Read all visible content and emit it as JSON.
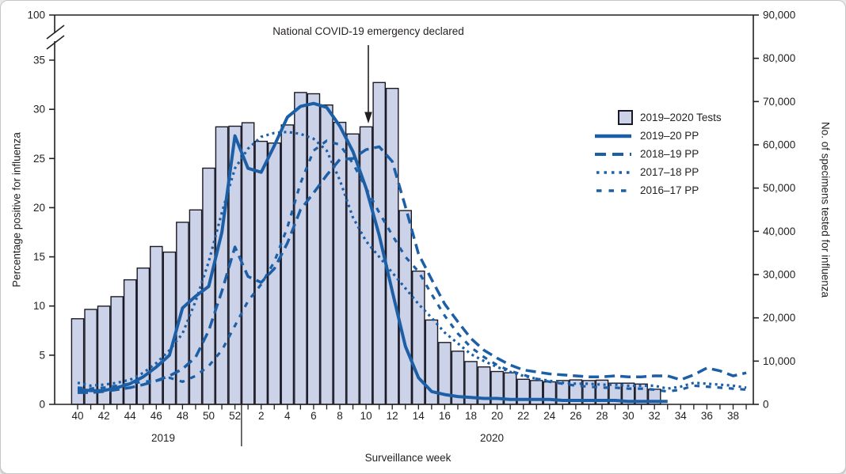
{
  "figure_title": "",
  "annotation": {
    "text": "National COVID-19 emergency declared"
  },
  "axes": {
    "x": {
      "label": "Surveillance week",
      "year_left": "2019",
      "year_right": "2020"
    },
    "y_left": {
      "label": "Percentage positive for influenza",
      "ticks": [
        0,
        5,
        10,
        15,
        20,
        25,
        30,
        35
      ],
      "break_top_tick": "100"
    },
    "y_right": {
      "label": "No. of specimens tested for influenza",
      "ticks": [
        0,
        10000,
        20000,
        30000,
        40000,
        50000,
        60000,
        70000,
        80000,
        90000
      ]
    }
  },
  "legend": {
    "items": [
      {
        "id": "tests",
        "label": "2019–2020 Tests",
        "type": "bar"
      },
      {
        "id": "pp-2019-20",
        "label": "2019–20 PP",
        "type": "line-solid"
      },
      {
        "id": "pp-2018-19",
        "label": "2018–19 PP",
        "type": "line-long-dash"
      },
      {
        "id": "pp-2017-18",
        "label": "2017–18 PP",
        "type": "line-dotted"
      },
      {
        "id": "pp-2016-17",
        "label": "2016–17 PP",
        "type": "line-short-dash"
      }
    ]
  },
  "colors": {
    "line_blue": "#1d5fa6",
    "bar_fill": "#ccd3e9",
    "bar_stroke": "#1a1a26",
    "axis": "#231f20",
    "text": "#231f20"
  },
  "chart_data": {
    "type": "bar",
    "subtype": "combo: bars of specimens tested (right axis) + 4 percent-positive lines (left axis)",
    "title": "",
    "xlabel": "Surveillance week",
    "ylabel_left": "Percentage positive for influenza",
    "ylabel_right": "No. of specimens tested for influenza",
    "ylim_left": [
      0,
      35
    ],
    "ylim_left_break_top": 100,
    "ylim_right": [
      0,
      90000
    ],
    "grid": false,
    "legend_position": "upper right inside plot",
    "x_weeks": [
      40,
      41,
      42,
      43,
      44,
      45,
      46,
      47,
      48,
      49,
      50,
      51,
      52,
      1,
      2,
      3,
      4,
      5,
      6,
      7,
      8,
      9,
      10,
      11,
      12,
      13,
      14,
      15,
      16,
      17,
      18,
      19,
      20,
      21,
      22,
      23,
      24,
      25,
      26,
      27,
      28,
      29,
      30,
      31,
      32,
      33,
      34,
      35,
      36,
      37,
      38,
      39
    ],
    "x_week_years": "weeks 40–52 are 2019; weeks 1–39 are 2020",
    "bars": {
      "name": "2019–2020 Tests",
      "axis": "right",
      "weeks_covered": "40 (2019) through 32 (2020)",
      "values": [
        19800,
        21950,
        22700,
        24900,
        28800,
        31500,
        36500,
        35200,
        42100,
        44950,
        54600,
        64150,
        64300,
        65100,
        60800,
        60400,
        64600,
        72100,
        71800,
        69200,
        65200,
        62500,
        64150,
        74400,
        73050,
        44800,
        30800,
        19500,
        14300,
        12300,
        9900,
        8650,
        7600,
        7300,
        5800,
        5500,
        5200,
        5500,
        5650,
        5500,
        5600,
        4900,
        4900,
        4700,
        3500
      ]
    },
    "series": [
      {
        "name": "2019–20 PP",
        "style": "solid",
        "axis": "left",
        "values": [
          1.5,
          1.4,
          1.4,
          1.7,
          2.1,
          2.8,
          3.8,
          5.0,
          9.8,
          11.0,
          12.0,
          17.5,
          27.3,
          24.0,
          23.6,
          26.3,
          29.2,
          30.3,
          30.6,
          30.2,
          28.3,
          25.7,
          22.0,
          17.2,
          11.5,
          5.9,
          2.7,
          1.3,
          1.0,
          0.8,
          0.7,
          0.6,
          0.6,
          0.5,
          0.5,
          0.5,
          0.5,
          0.4,
          0.4,
          0.4,
          0.4,
          0.4,
          0.3,
          0.3,
          0.3,
          0.3,
          null,
          null,
          null,
          null,
          null,
          null
        ]
      },
      {
        "name": "2018–19 PP",
        "style": "long-dash",
        "axis": "left",
        "values": [
          1.2,
          1.2,
          1.3,
          1.5,
          1.7,
          2.0,
          2.4,
          2.9,
          3.6,
          4.8,
          7.5,
          11.5,
          16.0,
          13.0,
          12.4,
          13.8,
          16.4,
          19.8,
          21.5,
          23.3,
          24.9,
          25.0,
          25.9,
          26.2,
          24.7,
          20.1,
          15.3,
          12.7,
          10.2,
          8.4,
          6.7,
          5.5,
          4.7,
          4.0,
          3.5,
          3.3,
          3.1,
          3.0,
          2.9,
          2.8,
          2.8,
          2.9,
          2.8,
          2.8,
          2.9,
          2.9,
          2.5,
          3.0,
          3.7,
          3.4,
          2.9,
          3.2
        ]
      },
      {
        "name": "2017–18 PP",
        "style": "dotted",
        "axis": "left",
        "values": [
          2.2,
          1.9,
          2.0,
          2.2,
          2.5,
          3.2,
          4.2,
          5.5,
          7.2,
          10.5,
          14.5,
          19.5,
          24.0,
          26.0,
          27.2,
          27.6,
          27.7,
          27.5,
          27.0,
          25.8,
          22.8,
          19.0,
          16.6,
          15.0,
          13.4,
          11.8,
          10.2,
          8.8,
          7.3,
          6.2,
          5.1,
          4.4,
          3.8,
          3.3,
          2.9,
          2.6,
          2.4,
          2.2,
          2.1,
          2.1,
          2.0,
          2.0,
          1.9,
          1.9,
          1.9,
          1.6,
          1.8,
          2.2,
          2.1,
          2.0,
          1.9,
          1.7
        ]
      },
      {
        "name": "2016–17 PP",
        "style": "short-dash",
        "axis": "left",
        "values": [
          1.7,
          1.6,
          1.7,
          1.9,
          2.1,
          2.3,
          2.4,
          2.7,
          2.3,
          2.9,
          3.9,
          5.5,
          8.0,
          10.5,
          12.2,
          14.5,
          18.0,
          22.5,
          25.8,
          26.8,
          26.4,
          24.5,
          22.0,
          19.5,
          17.2,
          15.0,
          13.5,
          11.2,
          9.0,
          7.2,
          5.8,
          4.8,
          4.0,
          3.4,
          3.0,
          2.6,
          2.3,
          2.1,
          1.9,
          1.8,
          1.7,
          1.7,
          1.6,
          1.6,
          1.5,
          1.3,
          1.5,
          1.9,
          1.8,
          1.7,
          1.6,
          1.5
        ]
      }
    ],
    "annotations": [
      {
        "text": "National COVID-19 emergency declared",
        "arrow_points_to_week": "10–11 (2020)"
      }
    ]
  }
}
